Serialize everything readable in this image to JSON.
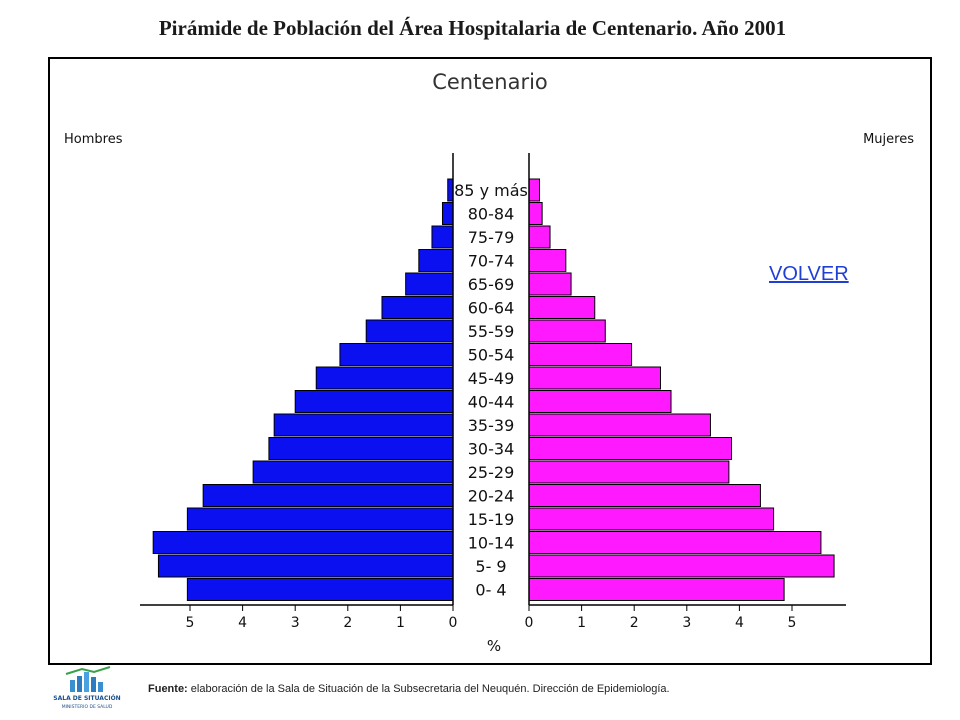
{
  "page": {
    "title": "Pirámide de Población del Área Hospitalaria de Centenario. Año 2001",
    "link_label": "VOLVER",
    "footer_label": "Fuente:",
    "footer_text": "elaboración de la Sala de Situación de la Subsecretaria del Neuquén. Dirección de Epidemiología.",
    "logo_text": "SALA DE SITUACIÓN",
    "logo_subtext": "MINISTERIO DE SALUD"
  },
  "chart_data": {
    "type": "bar",
    "orientation": "horizontal",
    "layout": "population-pyramid",
    "title": "Centenario",
    "xlabel": "%",
    "left_label": "Hombres",
    "right_label": "Mujeres",
    "categories": [
      "85 y más",
      "80-84",
      "75-79",
      "70-74",
      "65-69",
      "60-64",
      "55-59",
      "50-54",
      "45-49",
      "40-44",
      "35-39",
      "30-34",
      "25-29",
      "20-24",
      "15-19",
      "10-14",
      "5- 9",
      "0- 4"
    ],
    "series": [
      {
        "name": "Hombres",
        "color": "#0a10f0",
        "values": [
          0.1,
          0.2,
          0.4,
          0.65,
          0.9,
          1.35,
          1.65,
          2.15,
          2.6,
          3.0,
          3.4,
          3.5,
          3.8,
          4.75,
          5.05,
          5.7,
          5.6,
          5.05
        ]
      },
      {
        "name": "Mujeres",
        "color": "#ff19ff",
        "values": [
          0.2,
          0.25,
          0.4,
          0.7,
          0.8,
          1.25,
          1.45,
          1.95,
          2.5,
          2.7,
          3.45,
          3.85,
          3.8,
          4.4,
          4.65,
          5.55,
          5.8,
          4.85
        ]
      }
    ],
    "xlim": [
      0,
      6
    ],
    "ticks": [
      5,
      4,
      3,
      2,
      1,
      0
    ],
    "tick_labels_left": [
      "5",
      "4",
      "3",
      "2",
      "1",
      "0"
    ],
    "tick_labels_right": [
      "0",
      "1",
      "2",
      "3",
      "4",
      "5"
    ],
    "grid": false
  }
}
